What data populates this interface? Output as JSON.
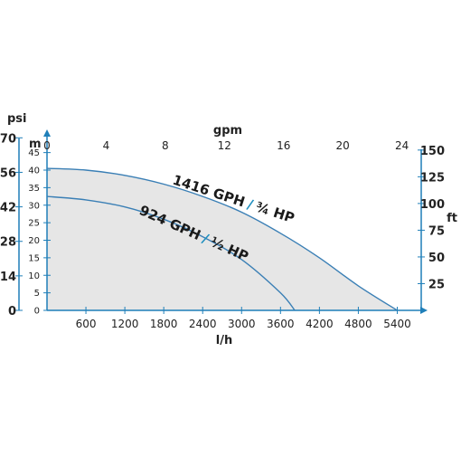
{
  "chart_data": {
    "type": "line",
    "title": "",
    "colors": {
      "axis": "#1f7fb9",
      "curve": "#3a7fb5",
      "fill": "#e6e6e6",
      "label_slash": "#1f8fbf"
    },
    "grid": "off",
    "x_bottom": {
      "label": "l/h",
      "ticks": [
        "600",
        "1200",
        "1800",
        "2400",
        "3000",
        "3600",
        "4200",
        "4800",
        "5400"
      ],
      "range": [
        0,
        5700
      ]
    },
    "x_top": {
      "label": "gpm",
      "ticks": [
        "0",
        "4",
        "8",
        "12",
        "16",
        "20",
        "24"
      ],
      "range": [
        0,
        25
      ]
    },
    "y_meters": {
      "label": "m",
      "ticks": [
        "0",
        "5",
        "10",
        "15",
        "20",
        "25",
        "30",
        "35",
        "40",
        "45"
      ],
      "range": [
        0,
        48
      ]
    },
    "y_psi": {
      "label": "psi",
      "ticks": [
        "0",
        "14",
        "28",
        "42",
        "56",
        "70"
      ]
    },
    "y_feet": {
      "label": "ft",
      "ticks": [
        "25",
        "50",
        "75",
        "100",
        "125",
        "150"
      ]
    },
    "series": [
      {
        "name": "1416 GPH",
        "power_label": "¾ HP",
        "x": [
          0,
          600,
          1200,
          1800,
          2400,
          3000,
          3600,
          4200,
          4800,
          5400
        ],
        "y": [
          40.5,
          40.0,
          38.5,
          36.0,
          32.5,
          28.0,
          22.0,
          15.0,
          7.0,
          0.0
        ]
      },
      {
        "name": "924 GPH",
        "power_label": "½ HP",
        "x": [
          0,
          600,
          1200,
          1800,
          2400,
          3000,
          3600,
          3820
        ],
        "y": [
          32.5,
          31.5,
          29.5,
          26.0,
          21.0,
          14.5,
          5.0,
          0.0
        ]
      }
    ]
  }
}
